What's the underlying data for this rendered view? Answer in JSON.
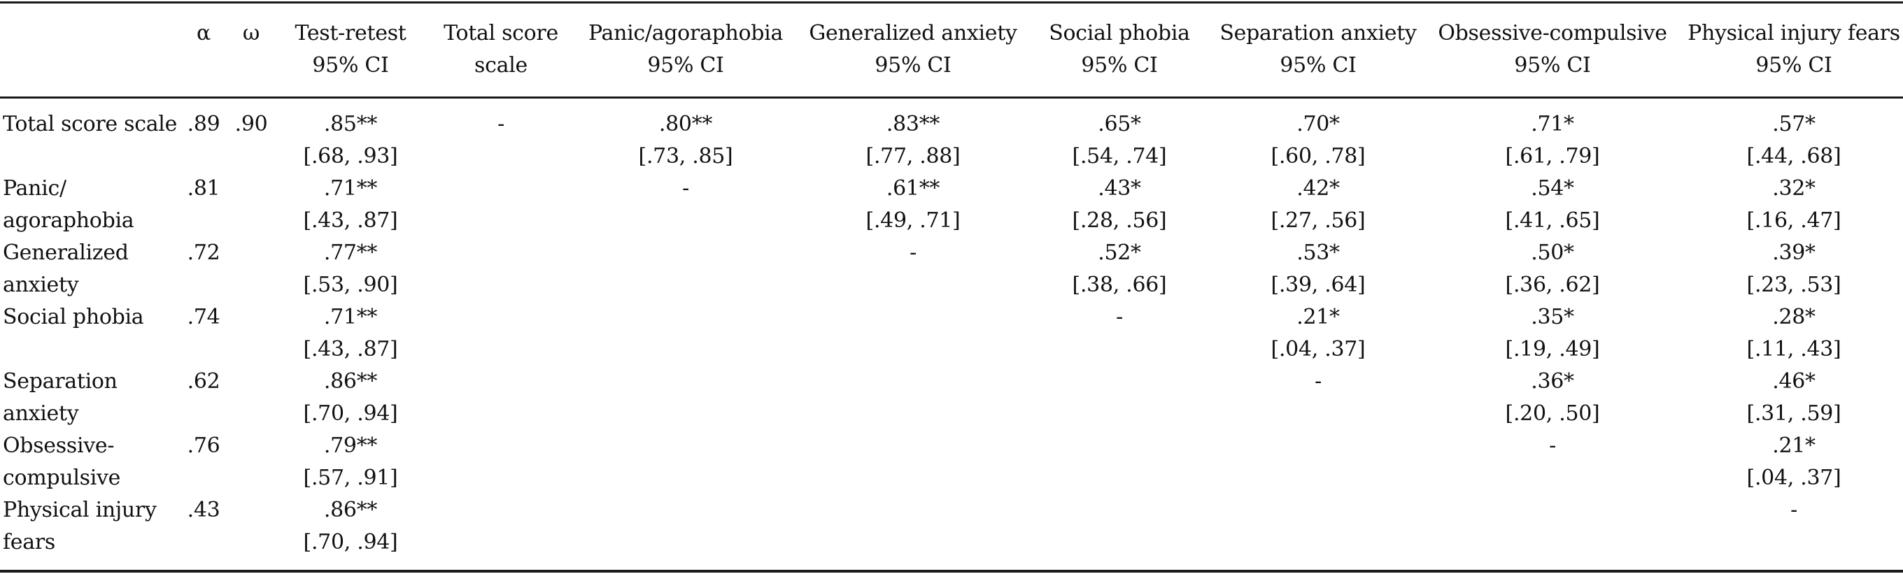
{
  "table": {
    "columns": [
      {
        "key": "label",
        "line1": "",
        "line2": ""
      },
      {
        "key": "alpha",
        "line1": "",
        "line2": "α"
      },
      {
        "key": "omega",
        "line1": "",
        "line2": "ω"
      },
      {
        "key": "test_retest",
        "line1": "Test-retest",
        "line2": "95% CI"
      },
      {
        "key": "total_score",
        "line1": "Total score",
        "line2": "scale"
      },
      {
        "key": "panic",
        "line1": "Panic/agoraphobia",
        "line2": "95% CI"
      },
      {
        "key": "generalized",
        "line1": "Generalized anxiety",
        "line2": "95% CI"
      },
      {
        "key": "social",
        "line1": "Social phobia",
        "line2": "95% CI"
      },
      {
        "key": "separation",
        "line1": "Separation anxiety",
        "line2": "95% CI"
      },
      {
        "key": "obsessive",
        "line1": "Obsessive-compulsive",
        "line2": "95% CI"
      },
      {
        "key": "physical",
        "line1": "Physical injury fears",
        "line2": "95% CI"
      }
    ],
    "rows": [
      {
        "label": [
          "Total score scale",
          ""
        ],
        "alpha": ".89",
        "omega": ".90",
        "test_retest": [
          ".85**",
          "[.68, .93]"
        ],
        "total_score": [
          "-",
          ""
        ],
        "panic": [
          ".80**",
          "[.73, .85]"
        ],
        "generalized": [
          ".83**",
          "[.77, .88]"
        ],
        "social": [
          ".65*",
          "[.54, .74]"
        ],
        "separation": [
          ".70*",
          "[.60, .78]"
        ],
        "obsessive": [
          ".71*",
          "[.61, .79]"
        ],
        "physical": [
          ".57*",
          "[.44, .68]"
        ]
      },
      {
        "label": [
          "Panic/",
          "agoraphobia"
        ],
        "alpha": ".81",
        "omega": "",
        "test_retest": [
          ".71**",
          "[.43, .87]"
        ],
        "total_score": [
          "",
          ""
        ],
        "panic": [
          "-",
          ""
        ],
        "generalized": [
          ".61**",
          "[.49, .71]"
        ],
        "social": [
          ".43*",
          "[.28, .56]"
        ],
        "separation": [
          ".42*",
          "[.27, .56]"
        ],
        "obsessive": [
          ".54*",
          "[.41, .65]"
        ],
        "physical": [
          ".32*",
          "[.16, .47]"
        ]
      },
      {
        "label": [
          "Generalized",
          "anxiety"
        ],
        "alpha": ".72",
        "omega": "",
        "test_retest": [
          ".77**",
          "[.53, .90]"
        ],
        "total_score": [
          "",
          ""
        ],
        "panic": [
          "",
          ""
        ],
        "generalized": [
          "-",
          ""
        ],
        "social": [
          ".52*",
          "[.38, .66]"
        ],
        "separation": [
          ".53*",
          "[.39, .64]"
        ],
        "obsessive": [
          ".50*",
          "[.36, .62]"
        ],
        "physical": [
          ".39*",
          "[.23, .53]"
        ]
      },
      {
        "label": [
          "Social phobia",
          ""
        ],
        "alpha": ".74",
        "omega": "",
        "test_retest": [
          ".71**",
          "[.43, .87]"
        ],
        "total_score": [
          "",
          ""
        ],
        "panic": [
          "",
          ""
        ],
        "generalized": [
          "",
          ""
        ],
        "social": [
          "-",
          ""
        ],
        "separation": [
          ".21*",
          "[.04, .37]"
        ],
        "obsessive": [
          ".35*",
          "[.19, .49]"
        ],
        "physical": [
          ".28*",
          "[.11, .43]"
        ]
      },
      {
        "label": [
          "Separation",
          "anxiety"
        ],
        "alpha": ".62",
        "omega": "",
        "test_retest": [
          ".86**",
          "[.70, .94]"
        ],
        "total_score": [
          "",
          ""
        ],
        "panic": [
          "",
          ""
        ],
        "generalized": [
          "",
          ""
        ],
        "social": [
          "",
          ""
        ],
        "separation": [
          "-",
          ""
        ],
        "obsessive": [
          ".36*",
          "[.20, .50]"
        ],
        "physical": [
          ".46*",
          "[.31, .59]"
        ]
      },
      {
        "label": [
          "Obsessive-",
          "compulsive"
        ],
        "alpha": ".76",
        "omega": "",
        "test_retest": [
          ".79**",
          "[.57, .91]"
        ],
        "total_score": [
          "",
          ""
        ],
        "panic": [
          "",
          ""
        ],
        "generalized": [
          "",
          ""
        ],
        "social": [
          "",
          ""
        ],
        "separation": [
          "",
          ""
        ],
        "obsessive": [
          "-",
          ""
        ],
        "physical": [
          ".21*",
          "[.04, .37]"
        ]
      },
      {
        "label": [
          "Physical injury",
          "fears"
        ],
        "alpha": ".43",
        "omega": "",
        "test_retest": [
          ".86**",
          "[.70, .94]"
        ],
        "total_score": [
          "",
          ""
        ],
        "panic": [
          "",
          ""
        ],
        "generalized": [
          "",
          ""
        ],
        "social": [
          "",
          ""
        ],
        "separation": [
          "",
          ""
        ],
        "obsessive": [
          "",
          ""
        ],
        "physical": [
          "-",
          ""
        ]
      }
    ]
  }
}
